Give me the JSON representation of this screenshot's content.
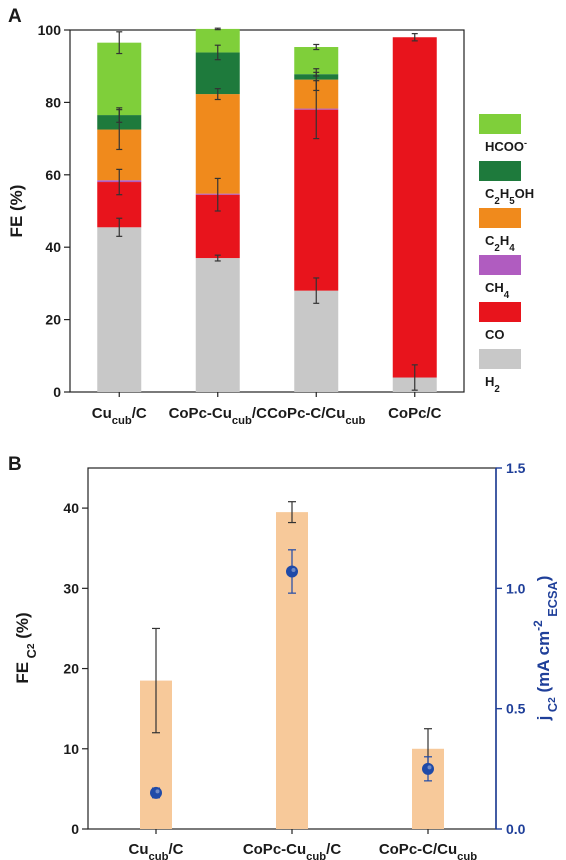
{
  "colors": {
    "HCOO": "#7fcf3a",
    "C2H5OH": "#1e7a3c",
    "C2H4": "#f08a1c",
    "CH4": "#b05cc0",
    "CO": "#e8141c",
    "H2": "#c8c8c8",
    "fe_bar": "#f7c99a",
    "jc2_point": "#1f4aa8",
    "right_axis": "#1f3f99"
  },
  "chart_data": [
    {
      "panel": "A",
      "type": "bar",
      "stacked": true,
      "ylabel": "FE (%)",
      "ylim": [
        0,
        100
      ],
      "yticks": [
        "0",
        "20",
        "40",
        "60",
        "80",
        "100"
      ],
      "categories": [
        {
          "main": "Cu",
          "sub": "cub",
          "tail": "/C"
        },
        {
          "main": "CoPc-Cu",
          "sub": "cub",
          "tail": "/C"
        },
        {
          "main": "CoPc-C/Cu",
          "sub": "cub",
          "tail": ""
        },
        {
          "main": "CoPc/C",
          "sub": "",
          "tail": ""
        }
      ],
      "legend": [
        {
          "key": "HCOO",
          "parts": [
            [
              "HCOO",
              ""
            ],
            [
              "-",
              "sup"
            ]
          ]
        },
        {
          "key": "C2H5OH",
          "parts": [
            [
              "C",
              ""
            ],
            [
              "2",
              "sub"
            ],
            [
              "H",
              ""
            ],
            [
              "5",
              "sub"
            ],
            [
              "OH",
              ""
            ]
          ]
        },
        {
          "key": "C2H4",
          "parts": [
            [
              "C",
              ""
            ],
            [
              "2",
              "sub"
            ],
            [
              "H",
              ""
            ],
            [
              "4",
              "sub"
            ]
          ]
        },
        {
          "key": "CH4",
          "parts": [
            [
              "CH",
              ""
            ],
            [
              "4",
              "sub"
            ]
          ]
        },
        {
          "key": "CO",
          "parts": [
            [
              "CO",
              ""
            ]
          ]
        },
        {
          "key": "H2",
          "parts": [
            [
              "H",
              ""
            ],
            [
              "2",
              "sub"
            ]
          ]
        }
      ],
      "series": [
        {
          "key": "H2",
          "values": [
            45.5,
            37.0,
            28.0,
            4.0
          ],
          "errors": [
            2.5,
            0.8,
            3.5,
            3.5
          ]
        },
        {
          "key": "CO",
          "values": [
            12.5,
            17.5,
            50.0,
            94.0
          ],
          "errors": [
            3.5,
            4.5,
            8.0,
            1.0
          ]
        },
        {
          "key": "CH4",
          "values": [
            0.5,
            0.3,
            0.3,
            0
          ],
          "errors": [
            0,
            0,
            0,
            0
          ]
        },
        {
          "key": "C2H4",
          "values": [
            14.0,
            27.5,
            8.0,
            0
          ],
          "errors": [
            5.5,
            1.5,
            3.0,
            0
          ]
        },
        {
          "key": "C2H5OH",
          "values": [
            4.0,
            11.5,
            1.5,
            0
          ],
          "errors": [
            2.0,
            2.0,
            0.5,
            0
          ]
        },
        {
          "key": "HCOO",
          "values": [
            20.0,
            6.5,
            7.5,
            0
          ],
          "errors": [
            3.0,
            0.2,
            0.7,
            0
          ]
        }
      ]
    },
    {
      "panel": "B",
      "type": "bar",
      "ylabel_parts": [
        [
          "FE",
          ""
        ],
        [
          " C",
          "sub"
        ],
        [
          "2",
          "subsub"
        ],
        [
          " (%)",
          ""
        ]
      ],
      "ylim": [
        0,
        45
      ],
      "yticks": [
        "0",
        "10",
        "20",
        "30",
        "40"
      ],
      "categories": [
        {
          "main": "Cu",
          "sub": "cub",
          "tail": "/C"
        },
        {
          "main": "CoPc-Cu",
          "sub": "cub",
          "tail": "/C"
        },
        {
          "main": "CoPc-C/Cu",
          "sub": "cub",
          "tail": ""
        }
      ],
      "fe_c2": {
        "values": [
          18.5,
          39.5,
          10.0
        ],
        "errors": [
          6.5,
          1.3,
          2.5
        ]
      },
      "y2label_parts": [
        [
          "j",
          ""
        ],
        [
          " C",
          "sub"
        ],
        [
          "2",
          "subsub"
        ],
        [
          " (mA cm",
          ""
        ],
        [
          "-2",
          "sup"
        ],
        [
          " ECSA",
          "sub"
        ],
        [
          ")",
          ""
        ]
      ],
      "y2lim": [
        0,
        1.5
      ],
      "y2ticks": [
        "0.0",
        "0.5",
        "1.0",
        "1.5"
      ],
      "j_c2": {
        "values": [
          0.15,
          1.07,
          0.25
        ],
        "errors": [
          0.02,
          0.09,
          0.05
        ]
      }
    }
  ]
}
